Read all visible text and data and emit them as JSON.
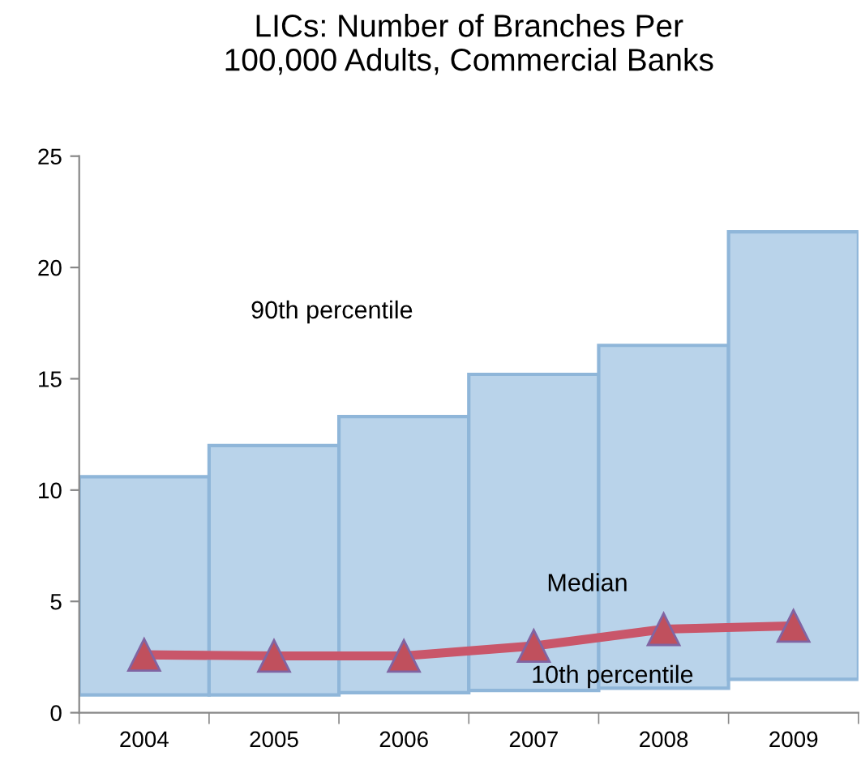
{
  "chart_data": {
    "type": "bar",
    "title": "LICs: Number of Branches Per\n100,000 Adults, Commercial Banks",
    "categories": [
      "2004",
      "2005",
      "2006",
      "2007",
      "2008",
      "2009"
    ],
    "series": [
      {
        "color": "#b9d3ea",
        "base": [
          0.8,
          0.8,
          0.9,
          1.0,
          1.1,
          1.5
        ],
        "values": [
          9.8,
          11.2,
          12.4,
          14.2,
          15.4,
          20.1
        ]
      },
      {
        "type": "line",
        "color": "#c9566a",
        "marker": "triangle",
        "values": [
          2.6,
          2.55,
          2.55,
          3.0,
          3.75,
          3.9
        ]
      }
    ],
    "ylim": [
      0,
      25
    ],
    "yticks": [
      0,
      5,
      10,
      15,
      20,
      25
    ],
    "grid": false,
    "legend": false,
    "annotations": [
      "90th percentile",
      "Median",
      "10th percentile"
    ]
  }
}
